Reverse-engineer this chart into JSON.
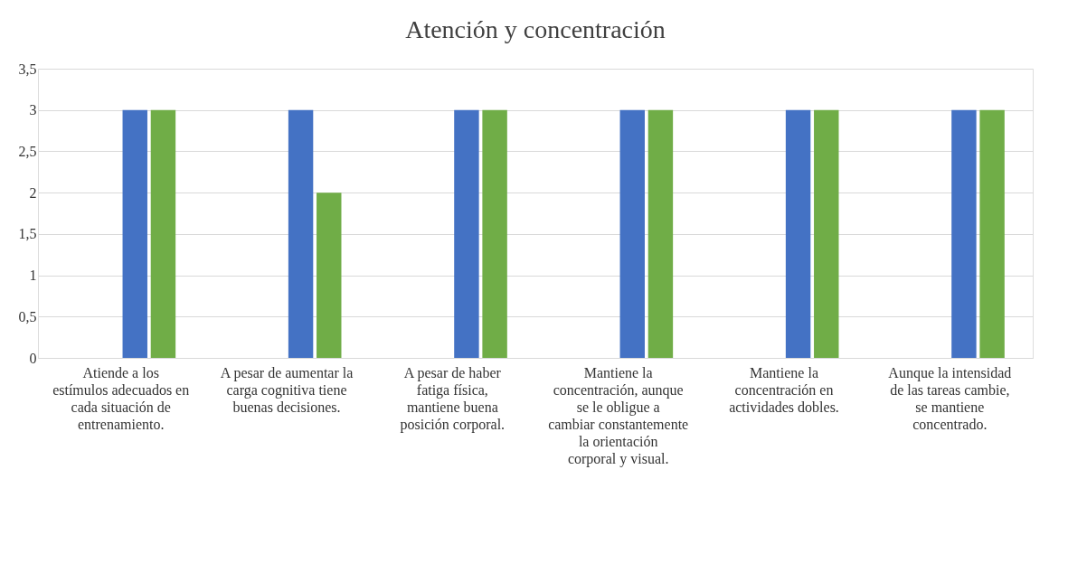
{
  "chart_data": {
    "type": "bar",
    "title": "Atención y concentración",
    "categories": [
      "Atiende a los estímulos adecuados en cada situación de entrenamiento.",
      "A pesar de aumentar la carga cognitiva tiene buenas decisiones.",
      "A pesar de haber fatiga física, mantiene buena posición corporal.",
      "Mantiene la concentración, aunque se le obligue a cambiar constantemente la orientación corporal y visual.",
      "Mantiene la concentración en actividades dobles.",
      "Aunque la intensidad de las tareas cambie, se mantiene concentrado."
    ],
    "series": [
      {
        "color": "#4472c4",
        "values": [
          3,
          3,
          3,
          3,
          3,
          3
        ]
      },
      {
        "color": "#70ad47",
        "values": [
          3,
          2,
          3,
          3,
          3,
          3
        ]
      }
    ],
    "ylim": [
      0,
      3.5
    ],
    "yticks": [
      0,
      {
        "value": 0.5,
        "label": "0,5"
      },
      1,
      {
        "value": 1.5,
        "label": "1,5"
      },
      2,
      {
        "value": 2.5,
        "label": "2,5"
      },
      3,
      {
        "value": 3.5,
        "label": "3,5"
      }
    ],
    "grid": "y",
    "legend": false
  }
}
